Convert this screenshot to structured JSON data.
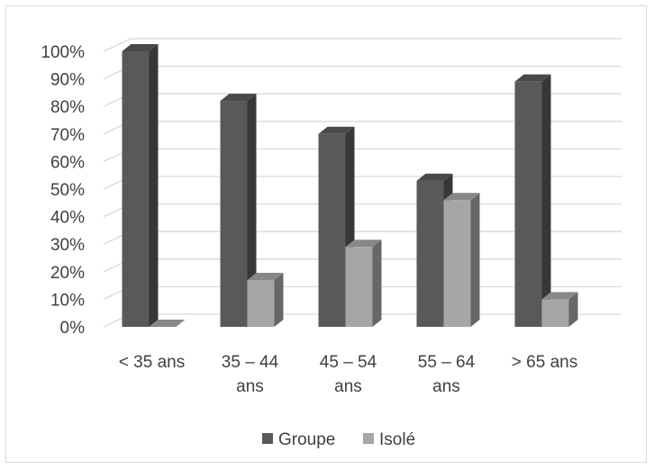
{
  "chart_data": {
    "type": "bar",
    "title": "",
    "xlabel": "",
    "ylabel": "",
    "ylim": [
      0,
      100
    ],
    "yticks": [
      "0%",
      "10%",
      "20%",
      "30%",
      "40%",
      "50%",
      "60%",
      "70%",
      "80%",
      "90%",
      "100%"
    ],
    "categories": [
      [
        "< 35 ans"
      ],
      [
        "35 – 44",
        "ans"
      ],
      [
        "45 – 54",
        "ans"
      ],
      [
        "55 – 64",
        "ans"
      ],
      [
        "> 65 ans"
      ]
    ],
    "series": [
      {
        "name": "Groupe",
        "values": [
          100,
          82,
          70,
          53,
          89
        ],
        "color": "#595959"
      },
      {
        "name": "Isolé",
        "values": [
          0,
          17,
          29,
          46,
          10
        ],
        "color": "#a6a6a6"
      }
    ],
    "grid": true,
    "style": "3d",
    "legend_position": "bottom"
  }
}
